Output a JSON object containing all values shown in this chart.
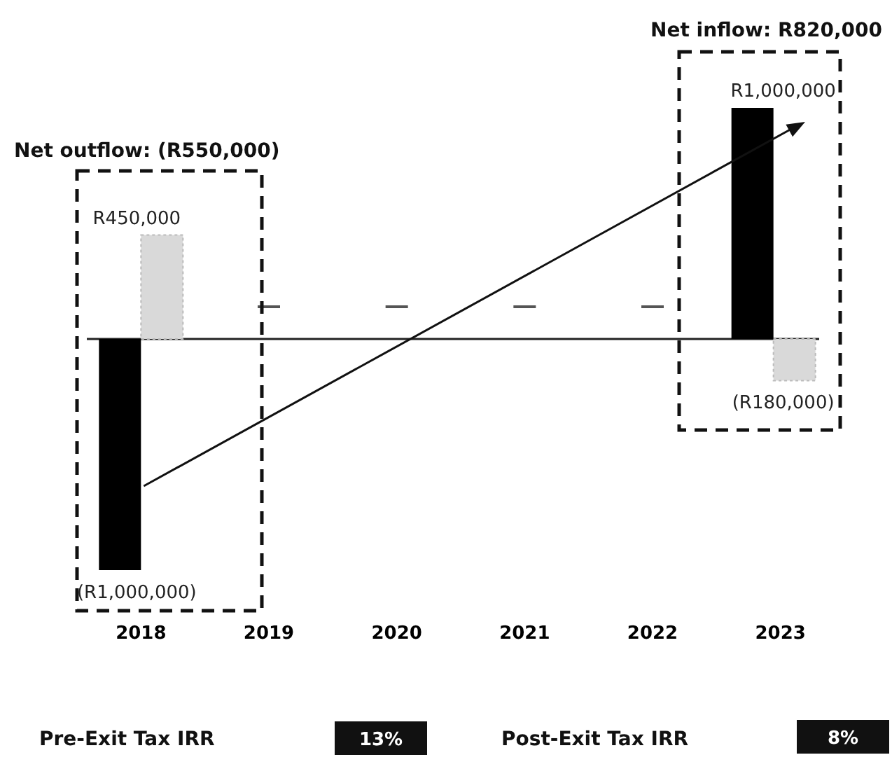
{
  "chart_data": {
    "type": "bar",
    "categories": [
      "2018",
      "2019",
      "2020",
      "2021",
      "2022",
      "2023"
    ],
    "series": [
      {
        "color": "#000000",
        "values": [
          -1000000,
          null,
          null,
          null,
          null,
          1000000
        ],
        "value_labels": [
          "(R1,000,000)",
          null,
          null,
          null,
          null,
          "R1,000,000"
        ]
      },
      {
        "color": "#d9d9d9",
        "values": [
          450000,
          null,
          null,
          null,
          null,
          -180000
        ],
        "value_labels": [
          "R450,000",
          null,
          null,
          null,
          null,
          "(R180,000)"
        ]
      }
    ],
    "annotations": [
      "Net outflow: (R550,000)",
      "Net inflow: R820,000",
      "Pre-Exit Tax IRR",
      "13%",
      "Post-Exit Tax IRR",
      "8%"
    ]
  }
}
